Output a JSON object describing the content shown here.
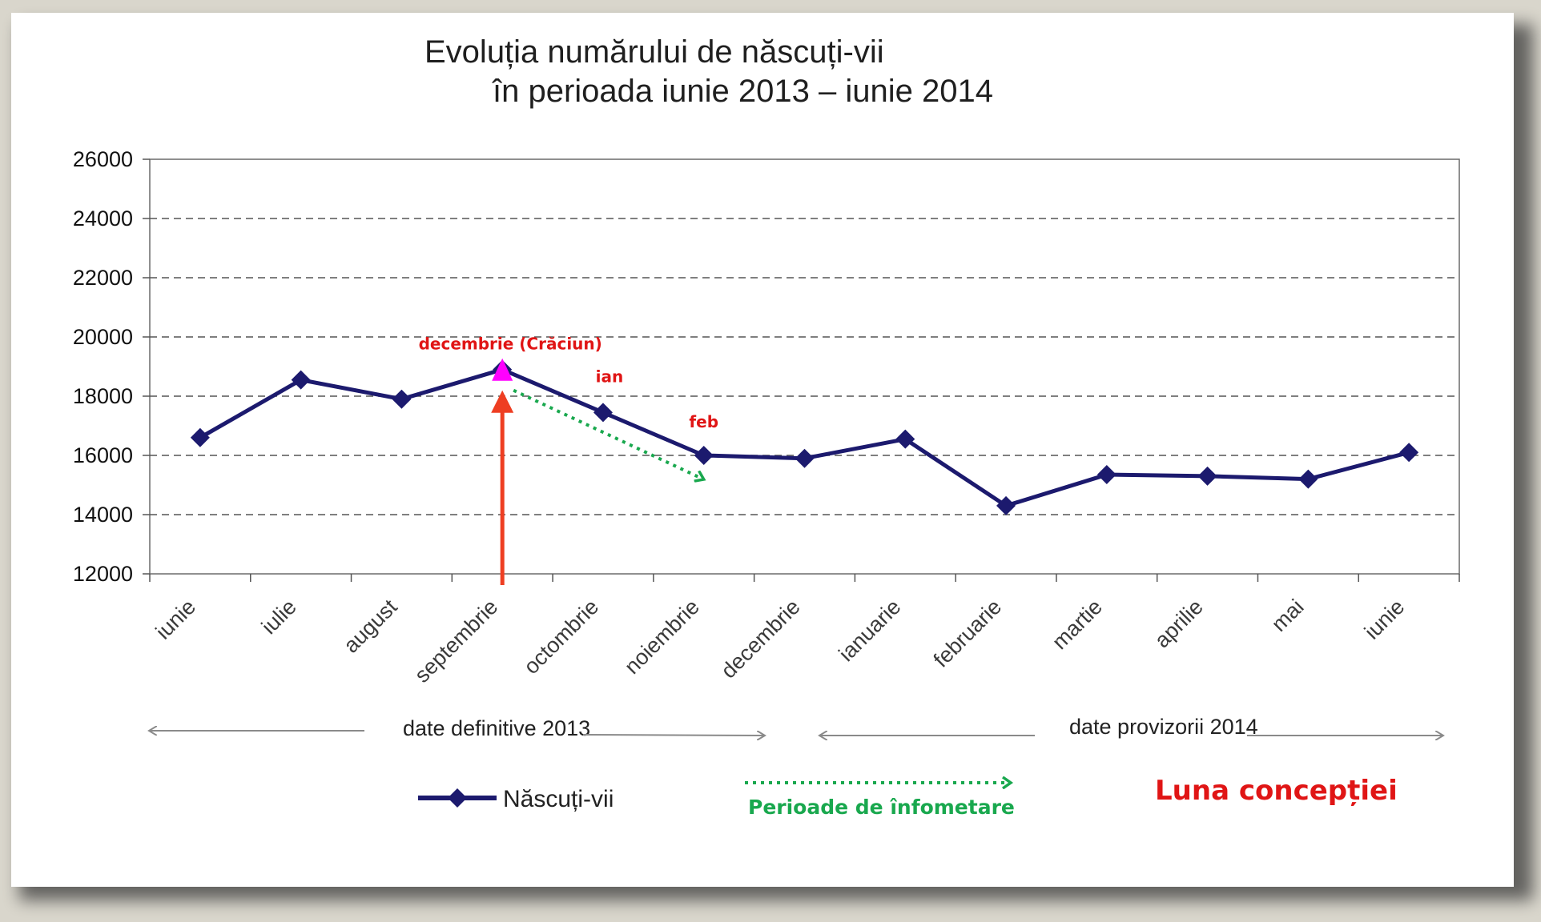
{
  "chart_data": {
    "type": "line",
    "title_line1": "Evoluția numărului de născuți-vii",
    "title_line2": "în perioada iunie 2013 – iunie 2014",
    "categories": [
      "iunie",
      "iulie",
      "august",
      "septembrie",
      "octombrie",
      "noiembrie",
      "decembrie",
      "ianuarie",
      "februarie",
      "martie",
      "aprilie",
      "mai",
      "iunie"
    ],
    "series": [
      {
        "name": "Născuți-vii",
        "color": "#1c1a6e",
        "values": [
          16600,
          18550,
          17900,
          18900,
          17450,
          16000,
          15900,
          16550,
          14300,
          15350,
          15300,
          15200,
          16100
        ]
      }
    ],
    "y_ticks": [
      "12000",
      "14000",
      "16000",
      "18000",
      "20000",
      "22000",
      "24000",
      "26000"
    ],
    "ylim": [
      12000,
      26000
    ],
    "grid": "dashed horizontal",
    "legend": "bottom-left",
    "periods": {
      "definitive": "date definitive 2013",
      "provisional": "date provizorii 2014"
    },
    "annotations": {
      "christmas_label": "decembrie (Crăciun)",
      "jan_label": "ian",
      "feb_label": "feb",
      "famine_legend": "Perioade de înfometare",
      "conception_legend": "Luna concepției",
      "highlight_category": "septembrie",
      "highlight_color": "#ff00ff",
      "arrow_color": "#ee3e22",
      "famine_color": "#19a84e",
      "label_color": "#e01515"
    }
  }
}
